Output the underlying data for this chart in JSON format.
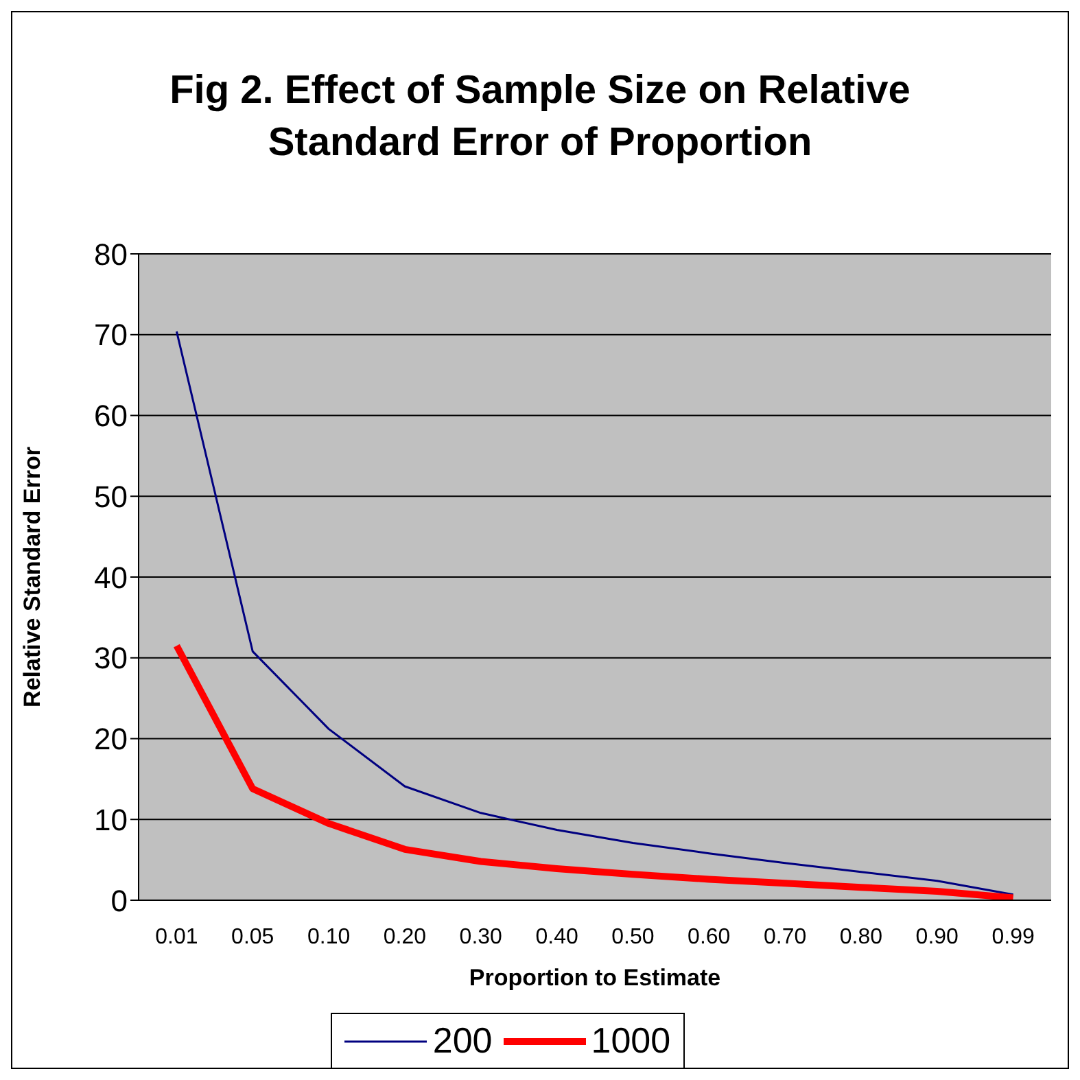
{
  "chart_data": {
    "type": "line",
    "title": "Fig 2.  Effect of Sample Size on Relative Standard Error of Proportion",
    "xlabel": "Proportion to Estimate",
    "ylabel": "Relative Standard Error",
    "categories": [
      "0.01",
      "0.05",
      "0.10",
      "0.20",
      "0.30",
      "0.40",
      "0.50",
      "0.60",
      "0.70",
      "0.80",
      "0.90",
      "0.99"
    ],
    "series": [
      {
        "name": "200",
        "color": "#000080",
        "values": [
          70.4,
          30.8,
          21.2,
          14.1,
          10.8,
          8.7,
          7.1,
          5.8,
          4.6,
          3.5,
          2.4,
          0.7
        ]
      },
      {
        "name": "1000",
        "color": "#ff0000",
        "values": [
          31.5,
          13.8,
          9.5,
          6.3,
          4.8,
          3.9,
          3.2,
          2.6,
          2.1,
          1.6,
          1.1,
          0.3
        ]
      }
    ],
    "ylim": [
      0,
      80
    ],
    "yticks": [
      0,
      10,
      20,
      30,
      40,
      50,
      60,
      70,
      80
    ],
    "grid": "y",
    "legend": "bottom",
    "marker": "none",
    "line_style": "solid"
  }
}
